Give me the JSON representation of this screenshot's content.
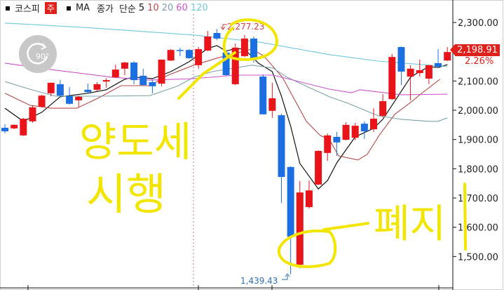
{
  "legend": {
    "index_name": "코스피",
    "period_badge": "주",
    "ma_label": "MA",
    "ma_basis": "종가",
    "ma_type": "단순",
    "ma_periods": [
      "5",
      "10",
      "20",
      "60",
      "120"
    ]
  },
  "rotate_button": {
    "label": "90°",
    "icon": "rotate-clockwise-icon"
  },
  "colors": {
    "up": "#e8141a",
    "down": "#1c6fe0",
    "ma5": "#111111",
    "ma10": "#b84848",
    "ma20": "#7fa3a8",
    "ma60": "#cc55cc",
    "ma120": "#6fc9d9",
    "annotation": "#f2e600"
  },
  "price_tag": {
    "value": "2,198.91",
    "change": "2.26%"
  },
  "annotations": {
    "high_label": "2,277.23",
    "low_label": "1,439.43",
    "handwritten_left_line1": "양도세",
    "handwritten_left_line2": "시행",
    "handwritten_right": "폐지"
  },
  "chart_data": {
    "type": "candlestick",
    "ylim": [
      1420,
      2330
    ],
    "y_ticks": [
      "2,300.00",
      "2,100.00",
      "2,000.00",
      "1,900.00",
      "1,800.00",
      "1,700.00",
      "1,600.00",
      "1,500.00"
    ],
    "y_tick_values": [
      2300,
      2100,
      2000,
      1900,
      1800,
      1700,
      1600,
      1500
    ],
    "grid": false,
    "candles_ohlc": [
      [
        1940,
        1952,
        1921,
        1928
      ],
      [
        1938,
        1952,
        1935,
        1950
      ],
      [
        1914,
        1974,
        1912,
        1971
      ],
      [
        1962,
        2017,
        1957,
        2010
      ],
      [
        2012,
        2053,
        2010,
        2050
      ],
      [
        2058,
        2094,
        2048,
        2094
      ],
      [
        2089,
        2103,
        2046,
        2050
      ],
      [
        2048,
        2079,
        2019,
        2022
      ],
      [
        2034,
        2050,
        2012,
        2046
      ],
      [
        2070,
        2091,
        2060,
        2062
      ],
      [
        2070,
        2096,
        2065,
        2089
      ],
      [
        2098,
        2110,
        2077,
        2103
      ],
      [
        2113,
        2156,
        2110,
        2139
      ],
      [
        2142,
        2166,
        2120,
        2163
      ],
      [
        2163,
        2168,
        2089,
        2103
      ],
      [
        2118,
        2142,
        2084,
        2086
      ],
      [
        2096,
        2103,
        2058,
        2082
      ],
      [
        2091,
        2173,
        2082,
        2173
      ],
      [
        2170,
        2209,
        2168,
        2206
      ],
      [
        2206,
        2214,
        2185,
        2204
      ],
      [
        2206,
        2209,
        2175,
        2178
      ],
      [
        2154,
        2216,
        2142,
        2209
      ],
      [
        2204,
        2271,
        2202,
        2252
      ],
      [
        2264,
        2277.23,
        2240,
        2245
      ],
      [
        2197,
        2202,
        2118,
        2120
      ],
      [
        2089,
        2228,
        2086,
        2214
      ],
      [
        2185,
        2257,
        2182,
        2245
      ],
      [
        2245,
        2252,
        2163,
        2173
      ],
      [
        2115,
        2122,
        1986,
        1986
      ],
      [
        1998,
        2094,
        1974,
        2041
      ],
      [
        1983,
        1988,
        1683,
        1772
      ],
      [
        1806,
        1808,
        1439.43,
        1568
      ],
      [
        1472,
        1758,
        1460,
        1719
      ],
      [
        1669,
        1760,
        1664,
        1726
      ],
      [
        1746,
        1863,
        1744,
        1861
      ],
      [
        1854,
        1921,
        1827,
        1914
      ],
      [
        1909,
        1926,
        1844,
        1890
      ],
      [
        1899,
        1959,
        1897,
        1950
      ],
      [
        1906,
        1957,
        1897,
        1947
      ],
      [
        1954,
        1962,
        1902,
        1928
      ],
      [
        1935,
        2007,
        1926,
        1971
      ],
      [
        1981,
        2055,
        1976,
        2031
      ],
      [
        2038,
        2192,
        2036,
        2182
      ],
      [
        2216,
        2218,
        2086,
        2132
      ],
      [
        2115,
        2154,
        2034,
        2142
      ],
      [
        2127,
        2173,
        2115,
        2137
      ],
      [
        2108,
        2154,
        2089,
        2154
      ],
      [
        2161,
        2209,
        2146,
        2149
      ],
      [
        2170,
        2216,
        2168,
        2198.91
      ]
    ],
    "moving_averages": [
      {
        "name": "5",
        "points": [
          [
            1,
            2007
          ],
          [
            3,
            1962
          ],
          [
            5,
            1993
          ],
          [
            7,
            2046
          ],
          [
            10,
            2058
          ],
          [
            12,
            2070
          ],
          [
            14,
            2106
          ],
          [
            15,
            2113
          ],
          [
            17,
            2108
          ],
          [
            19,
            2132
          ],
          [
            21,
            2166
          ],
          [
            23,
            2211
          ],
          [
            24,
            2221
          ],
          [
            25,
            2202
          ],
          [
            26,
            2211
          ],
          [
            27,
            2209
          ],
          [
            28.5,
            2161
          ],
          [
            30,
            2132
          ],
          [
            31,
            2048
          ],
          [
            32,
            1945
          ],
          [
            33,
            1818
          ],
          [
            35,
            1731
          ],
          [
            36,
            1760
          ],
          [
            37,
            1820
          ],
          [
            39,
            1909
          ],
          [
            41,
            1938
          ],
          [
            42,
            1969
          ],
          [
            43,
            2017
          ],
          [
            44,
            2065
          ],
          [
            45,
            2113
          ],
          [
            46,
            2132
          ],
          [
            47,
            2149
          ],
          [
            48,
            2146
          ],
          [
            49,
            2156
          ]
        ]
      },
      {
        "name": "10",
        "points": [
          [
            1,
            2058
          ],
          [
            3.7,
            2017
          ],
          [
            6,
            2007
          ],
          [
            8.8,
            2007
          ],
          [
            11.1,
            2041
          ],
          [
            13.6,
            2084
          ],
          [
            16.7,
            2084
          ],
          [
            18.7,
            2120
          ],
          [
            21.5,
            2154
          ],
          [
            24,
            2178
          ],
          [
            27.8,
            2209
          ],
          [
            29.1,
            2185
          ],
          [
            31.1,
            2113
          ],
          [
            33.7,
            1962
          ],
          [
            35.2,
            1914
          ],
          [
            36.2,
            1900
          ],
          [
            37.2,
            1844
          ],
          [
            39.3,
            1830
          ],
          [
            40.3,
            1849
          ],
          [
            41.6,
            1914
          ],
          [
            43.3,
            1986
          ],
          [
            45.1,
            2029
          ],
          [
            46.3,
            2060
          ],
          [
            48.2,
            2106
          ]
        ]
      },
      {
        "name": "20",
        "points": [
          [
            1,
            2098
          ],
          [
            3.7,
            2072
          ],
          [
            6.5,
            2048
          ],
          [
            11.1,
            2048
          ],
          [
            16.7,
            2050
          ],
          [
            19.7,
            2082
          ],
          [
            21.5,
            2113
          ],
          [
            23.5,
            2132
          ],
          [
            27.8,
            2154
          ],
          [
            30.1,
            2144
          ],
          [
            31.6,
            2113
          ],
          [
            33.7,
            2082
          ],
          [
            36.2,
            2046
          ],
          [
            38.2,
            2024
          ],
          [
            41.5,
            1981
          ],
          [
            44,
            1969
          ],
          [
            47,
            1962
          ],
          [
            48,
            1962
          ],
          [
            49,
            1974
          ]
        ]
      },
      {
        "name": "60",
        "points": [
          [
            1,
            2161
          ],
          [
            6.5,
            2137
          ],
          [
            12.6,
            2113
          ],
          [
            16.7,
            2103
          ],
          [
            21.5,
            2108
          ],
          [
            26.1,
            2120
          ],
          [
            30.1,
            2120
          ],
          [
            36.2,
            2072
          ],
          [
            38.6,
            2060
          ],
          [
            39.5,
            2070
          ],
          [
            44,
            2053
          ],
          [
            49,
            2055
          ]
        ]
      },
      {
        "name": "120",
        "points": [
          [
            1,
            2298
          ],
          [
            10.6,
            2281
          ],
          [
            21.5,
            2257
          ],
          [
            28.6,
            2233
          ],
          [
            36.2,
            2190
          ],
          [
            41.5,
            2168
          ],
          [
            49,
            2149
          ]
        ]
      }
    ]
  }
}
